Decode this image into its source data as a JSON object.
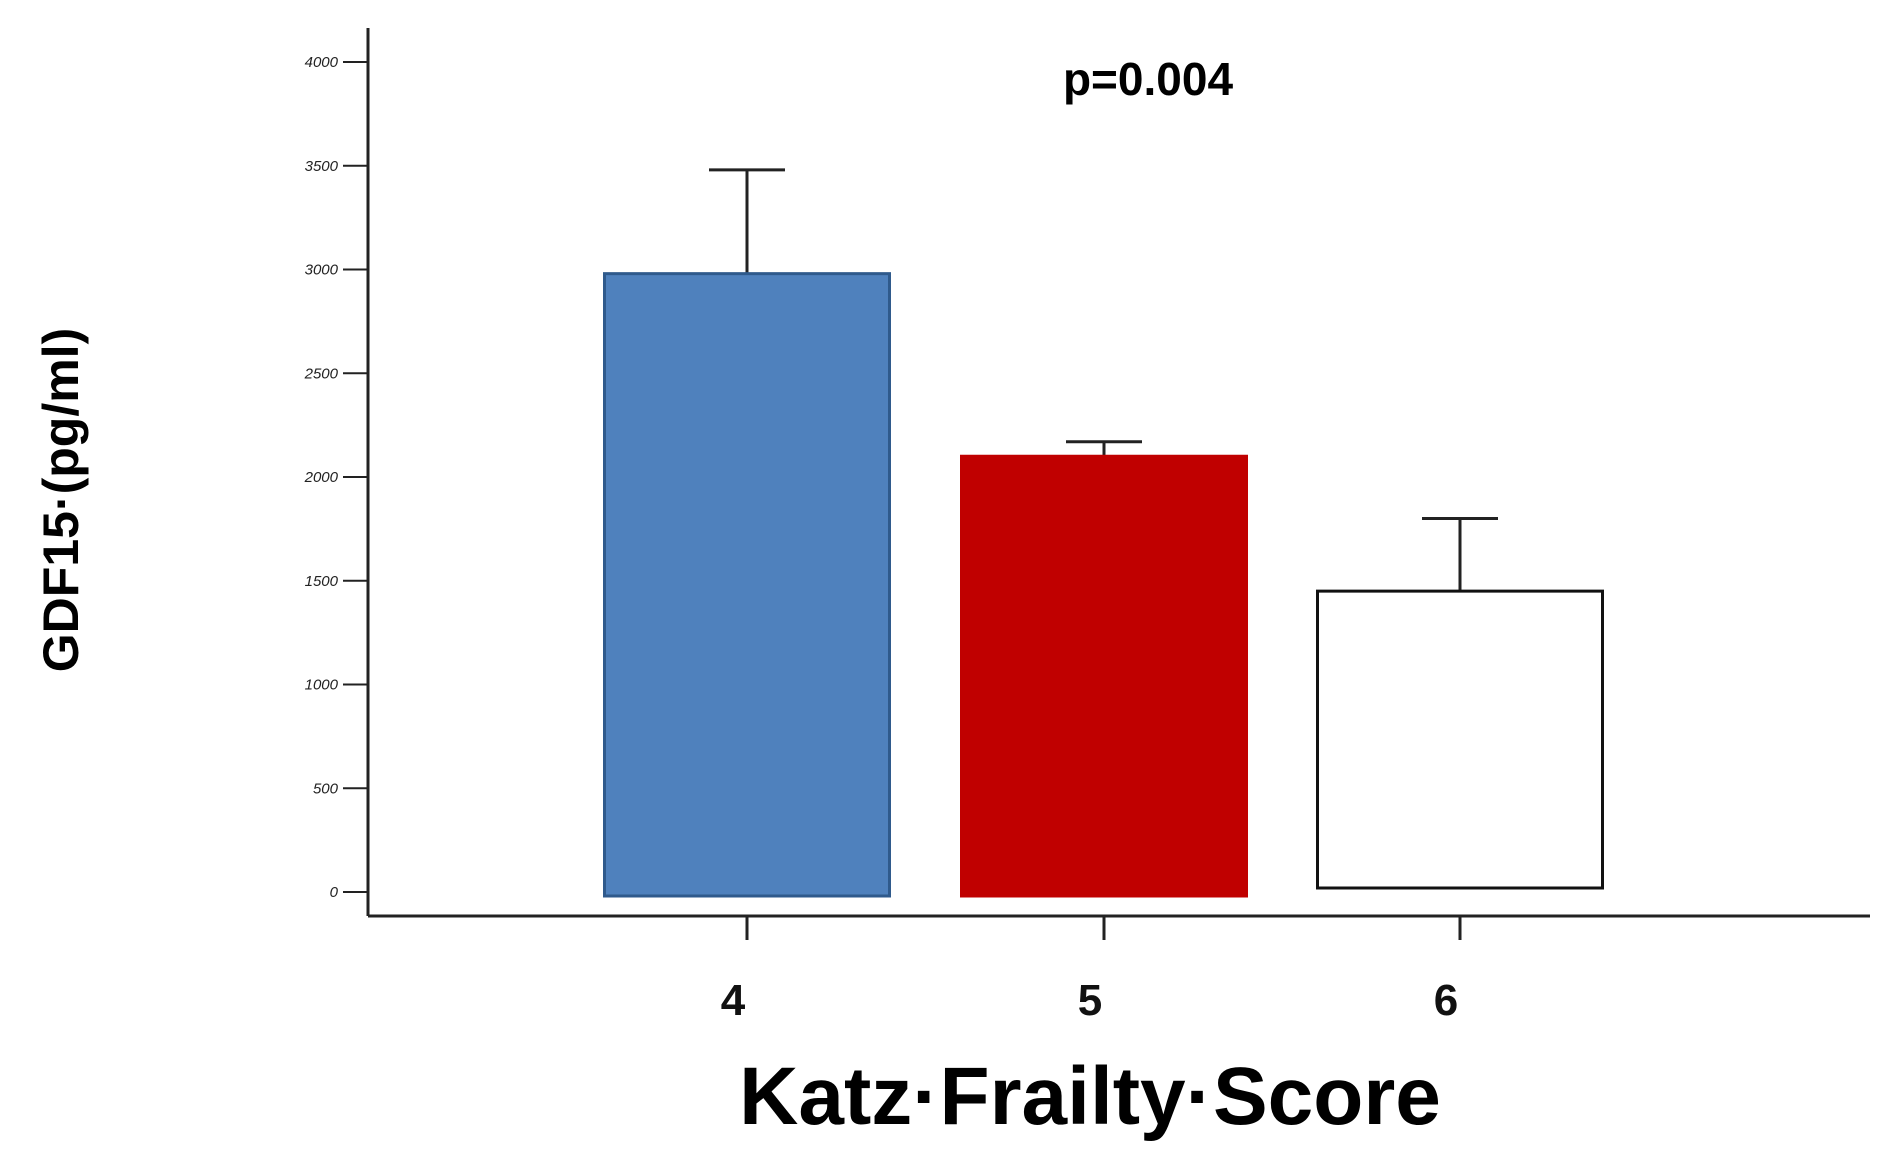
{
  "chart_data": {
    "type": "bar",
    "title": "",
    "annotation": "p=0.004",
    "xlabel": "Katz·Frailty·Score",
    "ylabel": "GDF15·(pg/ml)",
    "categories": [
      "4",
      "5",
      "6"
    ],
    "values": [
      2980,
      2100,
      1450
    ],
    "error_upper": [
      3480,
      2170,
      1800
    ],
    "bar_colors": [
      "#4f81bd",
      "#c00000",
      "#ffffff"
    ],
    "bar_stroke_colors": [
      "#2f5a8c",
      "#c00000",
      "#111111"
    ],
    "ylim": [
      0,
      4000
    ],
    "yticks": [
      0,
      500,
      1000,
      1500,
      2000,
      2500,
      3000,
      3500,
      4000
    ],
    "ytick_labels": [
      "0",
      "500",
      "1000",
      "1500",
      "2000",
      "2500",
      "3000",
      "3500",
      "4000"
    ],
    "grid": false,
    "legend": "none"
  }
}
